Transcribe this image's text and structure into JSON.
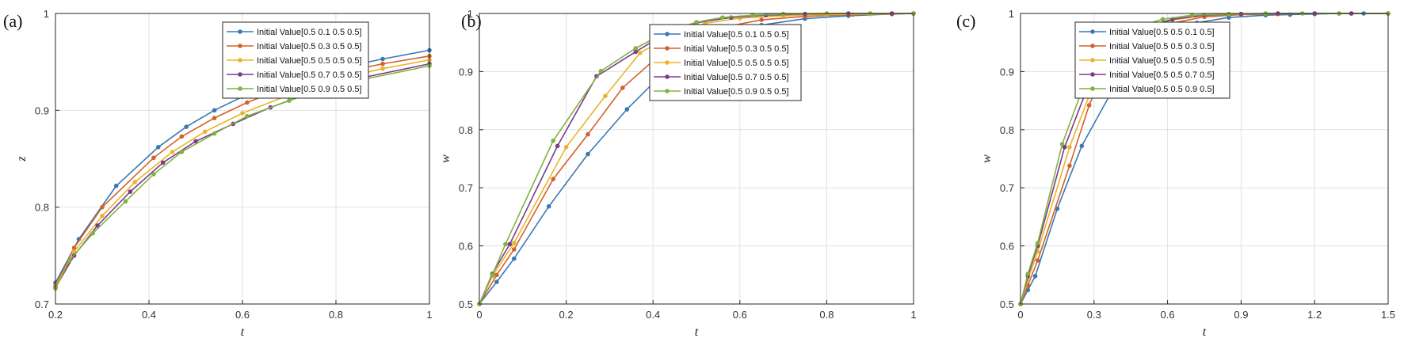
{
  "chart_data": [
    {
      "type": "line",
      "panel_label": "(a)",
      "xlabel": "t",
      "ylabel": "z",
      "xlim": [
        0.2,
        1
      ],
      "ylim": [
        0.7,
        1
      ],
      "xticks": [
        "0.2",
        "0.4",
        "0.6",
        "0.8",
        "1"
      ],
      "yticks": [
        "0.7",
        "0.8",
        "0.9",
        "1"
      ],
      "grid": true,
      "legend_position": "top-right",
      "series": [
        {
          "name": "Initial Value[0.5 0.1 0.5 0.5]",
          "color": "#3a78b4",
          "x": [
            0.2,
            0.25,
            0.33,
            0.42,
            0.48,
            0.54,
            0.6,
            0.7,
            0.8,
            0.9,
            1.0
          ],
          "y": [
            0.722,
            0.767,
            0.822,
            0.862,
            0.883,
            0.9,
            0.914,
            0.931,
            0.943,
            0.953,
            0.962
          ]
        },
        {
          "name": "Initial Value[0.5 0.3 0.5 0.5]",
          "color": "#d4612a",
          "x": [
            0.2,
            0.24,
            0.3,
            0.41,
            0.47,
            0.54,
            0.61,
            0.7,
            0.8,
            0.9,
            1.0
          ],
          "y": [
            0.719,
            0.758,
            0.8,
            0.851,
            0.873,
            0.892,
            0.908,
            0.925,
            0.938,
            0.948,
            0.956
          ]
        },
        {
          "name": "Initial Value[0.5 0.5 0.5 0.5]",
          "color": "#e8b52a",
          "x": [
            0.2,
            0.24,
            0.3,
            0.37,
            0.45,
            0.52,
            0.6,
            0.7,
            0.8,
            0.9,
            1.0
          ],
          "y": [
            0.718,
            0.754,
            0.791,
            0.826,
            0.857,
            0.878,
            0.897,
            0.916,
            0.932,
            0.943,
            0.952
          ]
        },
        {
          "name": "Initial Value[0.5 0.7 0.5 0.5]",
          "color": "#7b3a8e",
          "x": [
            0.2,
            0.24,
            0.29,
            0.36,
            0.43,
            0.5,
            0.58,
            0.66,
            0.75,
            0.85,
            1.0
          ],
          "y": [
            0.717,
            0.75,
            0.781,
            0.816,
            0.846,
            0.868,
            0.886,
            0.903,
            0.919,
            0.933,
            0.948
          ]
        },
        {
          "name": "Initial Value[0.5 0.9 0.5 0.5]",
          "color": "#7fb341",
          "x": [
            0.2,
            0.23,
            0.28,
            0.35,
            0.41,
            0.47,
            0.54,
            0.61,
            0.7,
            0.8,
            1.0
          ],
          "y": [
            0.716,
            0.745,
            0.773,
            0.806,
            0.834,
            0.857,
            0.876,
            0.894,
            0.91,
            0.926,
            0.946
          ]
        }
      ]
    },
    {
      "type": "line",
      "panel_label": "(b)",
      "xlabel": "t",
      "ylabel": "w",
      "xlim": [
        0,
        1
      ],
      "ylim": [
        0.5,
        1
      ],
      "xticks": [
        "0",
        "0.2",
        "0.4",
        "0.6",
        "0.8",
        "1"
      ],
      "yticks": [
        "0.5",
        "0.6",
        "0.7",
        "0.8",
        "0.9",
        "1"
      ],
      "grid": true,
      "legend_position": "right",
      "series": [
        {
          "name": "Initial Value[0.5 0.1 0.5 0.5]",
          "color": "#3a78b4",
          "x": [
            0,
            0.04,
            0.08,
            0.16,
            0.25,
            0.34,
            0.42,
            0.48,
            0.56,
            0.65,
            0.75,
            0.85,
            0.95,
            1.0
          ],
          "y": [
            0.5,
            0.538,
            0.578,
            0.668,
            0.758,
            0.835,
            0.895,
            0.928,
            0.96,
            0.98,
            0.991,
            0.996,
            0.999,
            1.0
          ]
        },
        {
          "name": "Initial Value[0.5 0.3 0.5 0.5]",
          "color": "#d4612a",
          "x": [
            0,
            0.04,
            0.08,
            0.17,
            0.25,
            0.33,
            0.41,
            0.48,
            0.56,
            0.65,
            0.75,
            0.86,
            0.95,
            1.0
          ],
          "y": [
            0.5,
            0.55,
            0.594,
            0.715,
            0.792,
            0.872,
            0.925,
            0.955,
            0.976,
            0.989,
            0.995,
            0.998,
            0.999,
            1.0
          ]
        },
        {
          "name": "Initial Value[0.5 0.5 0.5 0.5]",
          "color": "#e8b52a",
          "x": [
            0,
            0.03,
            0.08,
            0.2,
            0.29,
            0.37,
            0.44,
            0.52,
            0.6,
            0.7,
            0.8,
            0.9,
            1.0
          ],
          "y": [
            0.5,
            0.548,
            0.605,
            0.77,
            0.858,
            0.932,
            0.962,
            0.983,
            0.992,
            0.996,
            0.998,
            0.999,
            1.0
          ]
        },
        {
          "name": "Initial Value[0.5 0.7 0.5 0.5]",
          "color": "#7b3a8e",
          "x": [
            0,
            0.03,
            0.07,
            0.18,
            0.27,
            0.36,
            0.43,
            0.5,
            0.58,
            0.66,
            0.75,
            0.85,
            0.95,
            1.0
          ],
          "y": [
            0.5,
            0.552,
            0.603,
            0.772,
            0.892,
            0.934,
            0.966,
            0.984,
            0.993,
            0.997,
            0.999,
            1.0,
            1.0,
            1.0
          ]
        },
        {
          "name": "Initial Value[0.5 0.9 0.5 0.5]",
          "color": "#7fb341",
          "x": [
            0,
            0.03,
            0.06,
            0.17,
            0.28,
            0.36,
            0.43,
            0.5,
            0.56,
            0.63,
            0.7,
            0.8,
            0.9,
            1.0
          ],
          "y": [
            0.5,
            0.55,
            0.603,
            0.781,
            0.901,
            0.94,
            0.968,
            0.985,
            0.993,
            0.997,
            0.999,
            1.0,
            1.0,
            1.0
          ]
        }
      ]
    },
    {
      "type": "line",
      "panel_label": "(c)",
      "xlabel": "t",
      "ylabel": "w",
      "xlim": [
        0,
        1.5
      ],
      "ylim": [
        0.5,
        1
      ],
      "xticks": [
        "0",
        "0.3",
        "0.6",
        "0.9",
        "1.2",
        "1.5"
      ],
      "yticks": [
        "0.5",
        "0.6",
        "0.7",
        "0.8",
        "0.9",
        "1"
      ],
      "grid": true,
      "legend_position": "right",
      "series": [
        {
          "name": "Initial Value[0.5 0.5 0.1 0.5]",
          "color": "#3a78b4",
          "x": [
            0,
            0.03,
            0.06,
            0.15,
            0.25,
            0.37,
            0.48,
            0.6,
            0.72,
            0.85,
            1.0,
            1.1,
            1.2,
            1.3,
            1.4,
            1.5
          ],
          "y": [
            0.5,
            0.524,
            0.548,
            0.664,
            0.772,
            0.864,
            0.927,
            0.965,
            0.984,
            0.993,
            0.997,
            0.998,
            0.999,
            1.0,
            1.0,
            1.0
          ]
        },
        {
          "name": "Initial Value[0.5 0.5 0.3 0.5]",
          "color": "#d4612a",
          "x": [
            0,
            0.03,
            0.07,
            0.2,
            0.28,
            0.35,
            0.42,
            0.5,
            0.6,
            0.75,
            0.9,
            1.05,
            1.2,
            1.35,
            1.5
          ],
          "y": [
            0.5,
            0.532,
            0.575,
            0.738,
            0.842,
            0.91,
            0.938,
            0.962,
            0.982,
            0.994,
            0.998,
            0.999,
            1.0,
            1.0,
            1.0
          ]
        },
        {
          "name": "Initial Value[0.5 0.5 0.5 0.5]",
          "color": "#e8b52a",
          "x": [
            0,
            0.03,
            0.07,
            0.2,
            0.3,
            0.38,
            0.45,
            0.53,
            0.62,
            0.75,
            0.9,
            1.05,
            1.2,
            1.35,
            1.5
          ],
          "y": [
            0.5,
            0.542,
            0.59,
            0.77,
            0.88,
            0.935,
            0.958,
            0.976,
            0.989,
            0.996,
            0.999,
            1.0,
            1.0,
            1.0,
            1.0
          ]
        },
        {
          "name": "Initial Value[0.5 0.5 0.7 0.5]",
          "color": "#7b3a8e",
          "x": [
            0,
            0.03,
            0.07,
            0.18,
            0.28,
            0.37,
            0.45,
            0.53,
            0.62,
            0.75,
            0.9,
            1.05,
            1.2,
            1.35,
            1.5
          ],
          "y": [
            0.5,
            0.548,
            0.6,
            0.77,
            0.88,
            0.932,
            0.961,
            0.979,
            0.99,
            0.997,
            0.999,
            1.0,
            1.0,
            1.0,
            1.0
          ]
        },
        {
          "name": "Initial Value[0.5 0.5 0.9 0.5]",
          "color": "#7fb341",
          "x": [
            0,
            0.03,
            0.07,
            0.17,
            0.27,
            0.36,
            0.44,
            0.5,
            0.58,
            0.7,
            0.85,
            1.0,
            1.15,
            1.3,
            1.5
          ],
          "y": [
            0.5,
            0.552,
            0.605,
            0.775,
            0.89,
            0.94,
            0.966,
            0.98,
            0.99,
            0.997,
            0.999,
            1.0,
            1.0,
            1.0,
            1.0
          ]
        }
      ]
    }
  ]
}
